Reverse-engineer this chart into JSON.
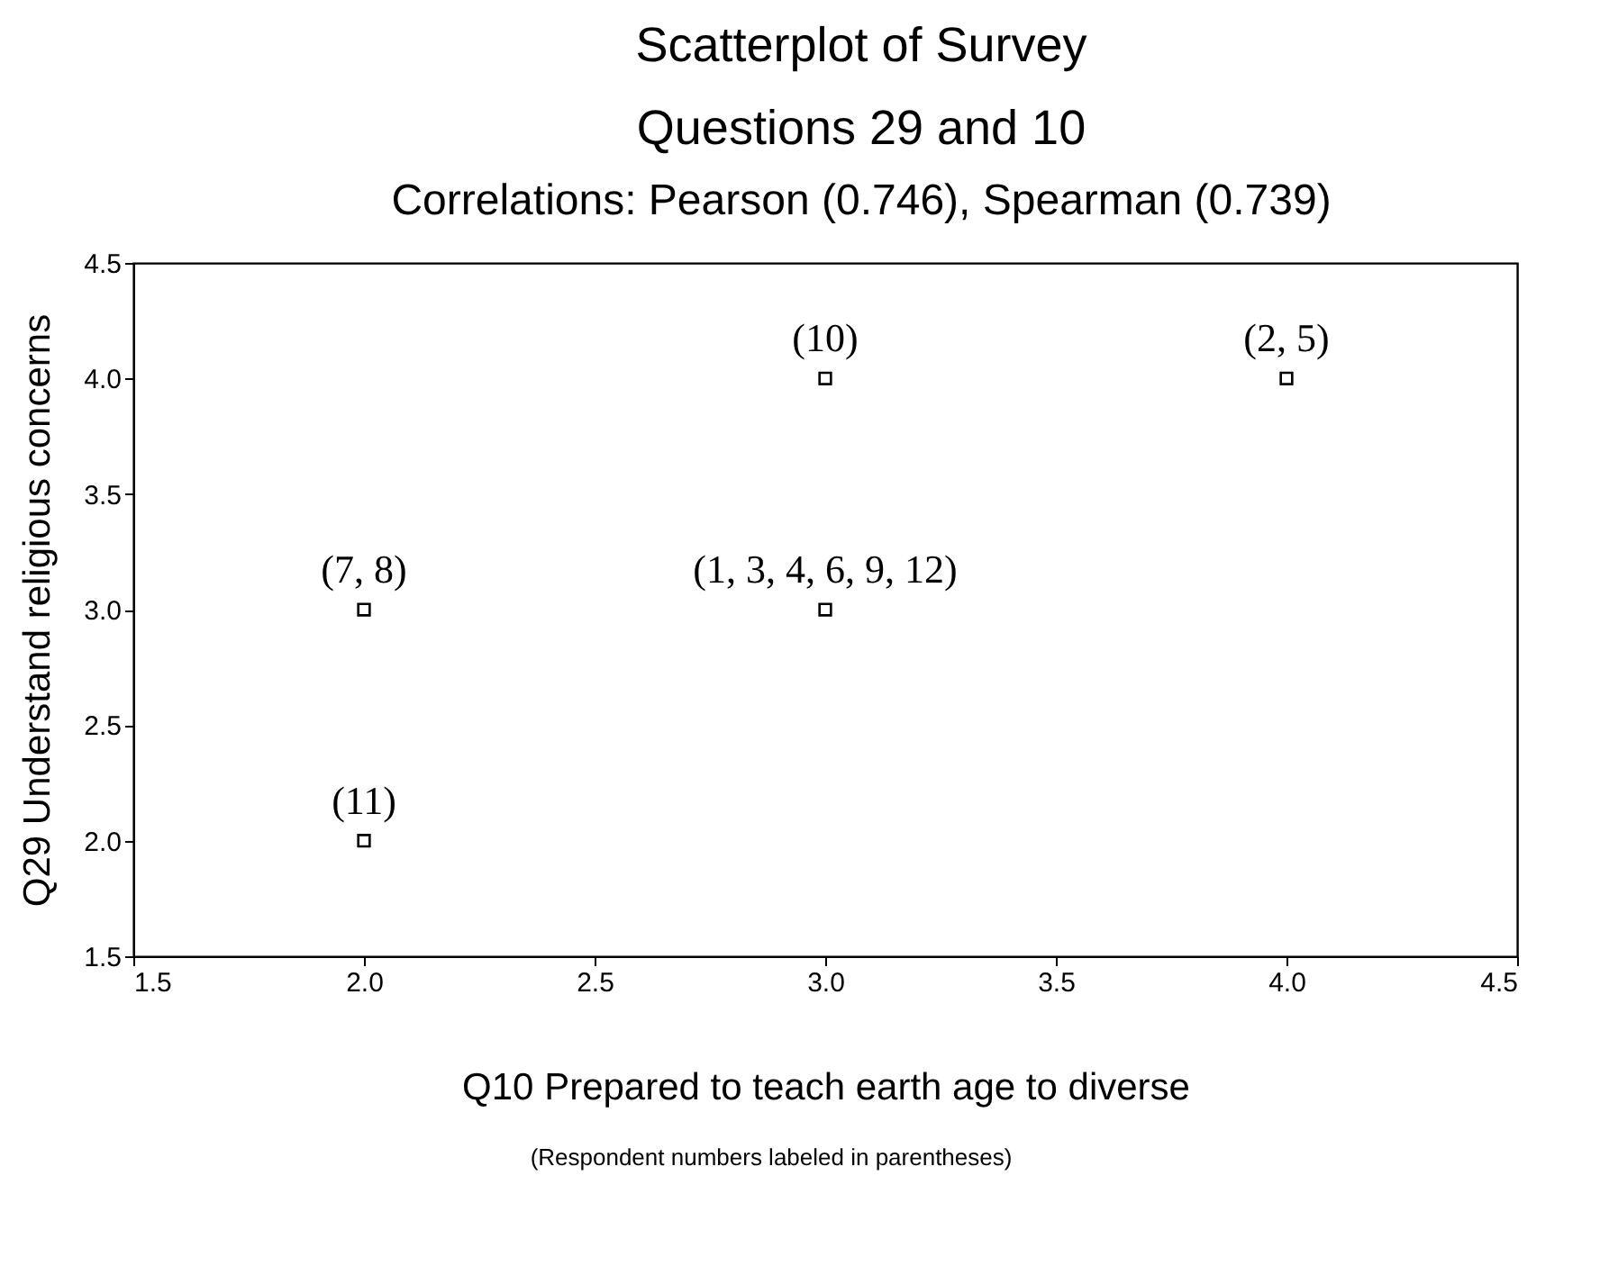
{
  "chart_data": {
    "type": "scatter",
    "title": "Scatterplot of Survey\nQuestions 29 and 10",
    "subtitle": "Correlations: Pearson (0.746), Spearman (0.739)",
    "xlabel": "Q10 Prepared to teach earth age to diverse",
    "ylabel": "Q29 Understand religious concerns",
    "x": [
      2,
      2,
      3,
      3,
      4
    ],
    "series": [
      {
        "color": "#000000",
        "values": [
          3,
          2,
          4,
          3,
          4
        ]
      }
    ],
    "marker": "square",
    "grid": false,
    "xlim": [
      1.5,
      4.5
    ],
    "ylim": [
      1.5,
      4.5
    ],
    "xticks": [
      1.5,
      {
        "value": 2,
        "label": "2.0"
      },
      2.5,
      {
        "value": 3,
        "label": "3.0"
      },
      3.5,
      {
        "value": 4,
        "label": "4.0"
      },
      4.5
    ],
    "yticks": [
      1.5,
      {
        "value": 2,
        "label": "2.0"
      },
      2.5,
      {
        "value": 3,
        "label": "3.0"
      },
      3.5,
      {
        "value": 4,
        "label": "4.0"
      },
      4.5
    ],
    "annotations": [
      {
        "text": "(7, 8)",
        "x": 2,
        "y": 3
      },
      {
        "text": "(11)",
        "x": 2,
        "y": 2
      },
      {
        "text": "(10)",
        "x": 3,
        "y": 4
      },
      {
        "text": "(1, 3, 4, 6, 9, 12)",
        "x": 3,
        "y": 3
      },
      {
        "text": "(2, 5)",
        "x": 4,
        "y": 4
      },
      "(Respondent numbers labeled in parentheses)"
    ]
  }
}
